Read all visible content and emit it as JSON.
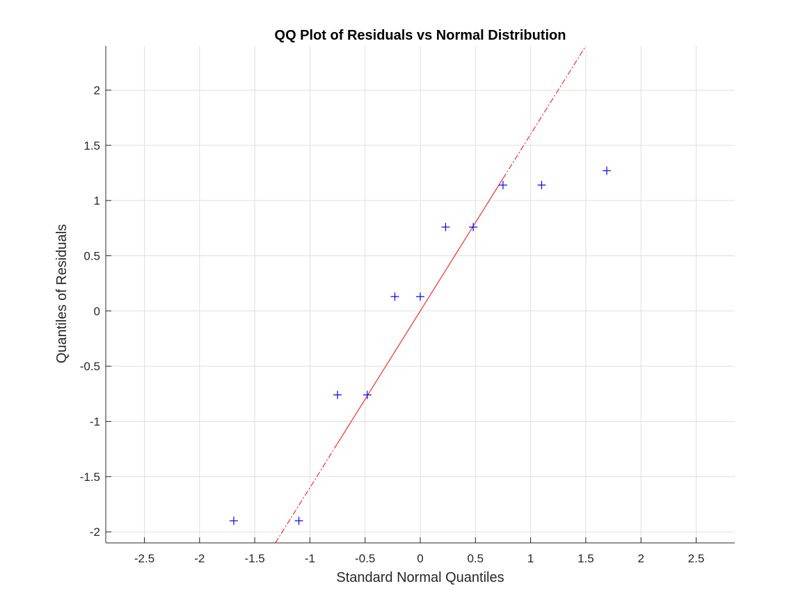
{
  "chart_data": {
    "type": "scatter",
    "title": "QQ Plot of Residuals vs Normal Distribution",
    "xlabel": "Standard Normal Quantiles",
    "ylabel": "Quantiles of Residuals",
    "xlim": [
      -2.85,
      2.85
    ],
    "ylim": [
      -2.1,
      2.4
    ],
    "grid": true,
    "x_ticks": [
      -2.5,
      -2,
      -1.5,
      -1,
      -0.5,
      0,
      0.5,
      1,
      1.5,
      2,
      2.5
    ],
    "x_tick_labels": [
      "-2.5",
      "-2",
      "-1.5",
      "-1",
      "-0.5",
      "0",
      "0.5",
      "1",
      "1.5",
      "2",
      "2.5"
    ],
    "y_ticks": [
      -2,
      -1.5,
      -1,
      -0.5,
      0,
      0.5,
      1,
      1.5,
      2
    ],
    "y_tick_labels": [
      "-2",
      "-1.5",
      "-1",
      "-0.5",
      "0",
      "0.5",
      "1",
      "1.5",
      "2"
    ],
    "series": [
      {
        "marker": "+",
        "color": "#0000ff",
        "points": [
          {
            "x": -1.69,
            "y": -1.9
          },
          {
            "x": -1.1,
            "y": -1.9
          },
          {
            "x": -0.75,
            "y": -0.76
          },
          {
            "x": -0.48,
            "y": -0.76
          },
          {
            "x": -0.23,
            "y": 0.13
          },
          {
            "x": 0.0,
            "y": 0.13
          },
          {
            "x": 0.23,
            "y": 0.76
          },
          {
            "x": 0.48,
            "y": 0.76
          },
          {
            "x": 0.75,
            "y": 1.14
          },
          {
            "x": 1.1,
            "y": 1.14
          },
          {
            "x": 1.69,
            "y": 1.27
          }
        ]
      }
    ],
    "reference_line": {
      "color": "#ff0000",
      "slope": 1.6,
      "intercept": 0.0,
      "solid_x_range": [
        -0.75,
        0.75
      ],
      "dashdot_x_range": [
        -1.69,
        1.69
      ]
    }
  }
}
